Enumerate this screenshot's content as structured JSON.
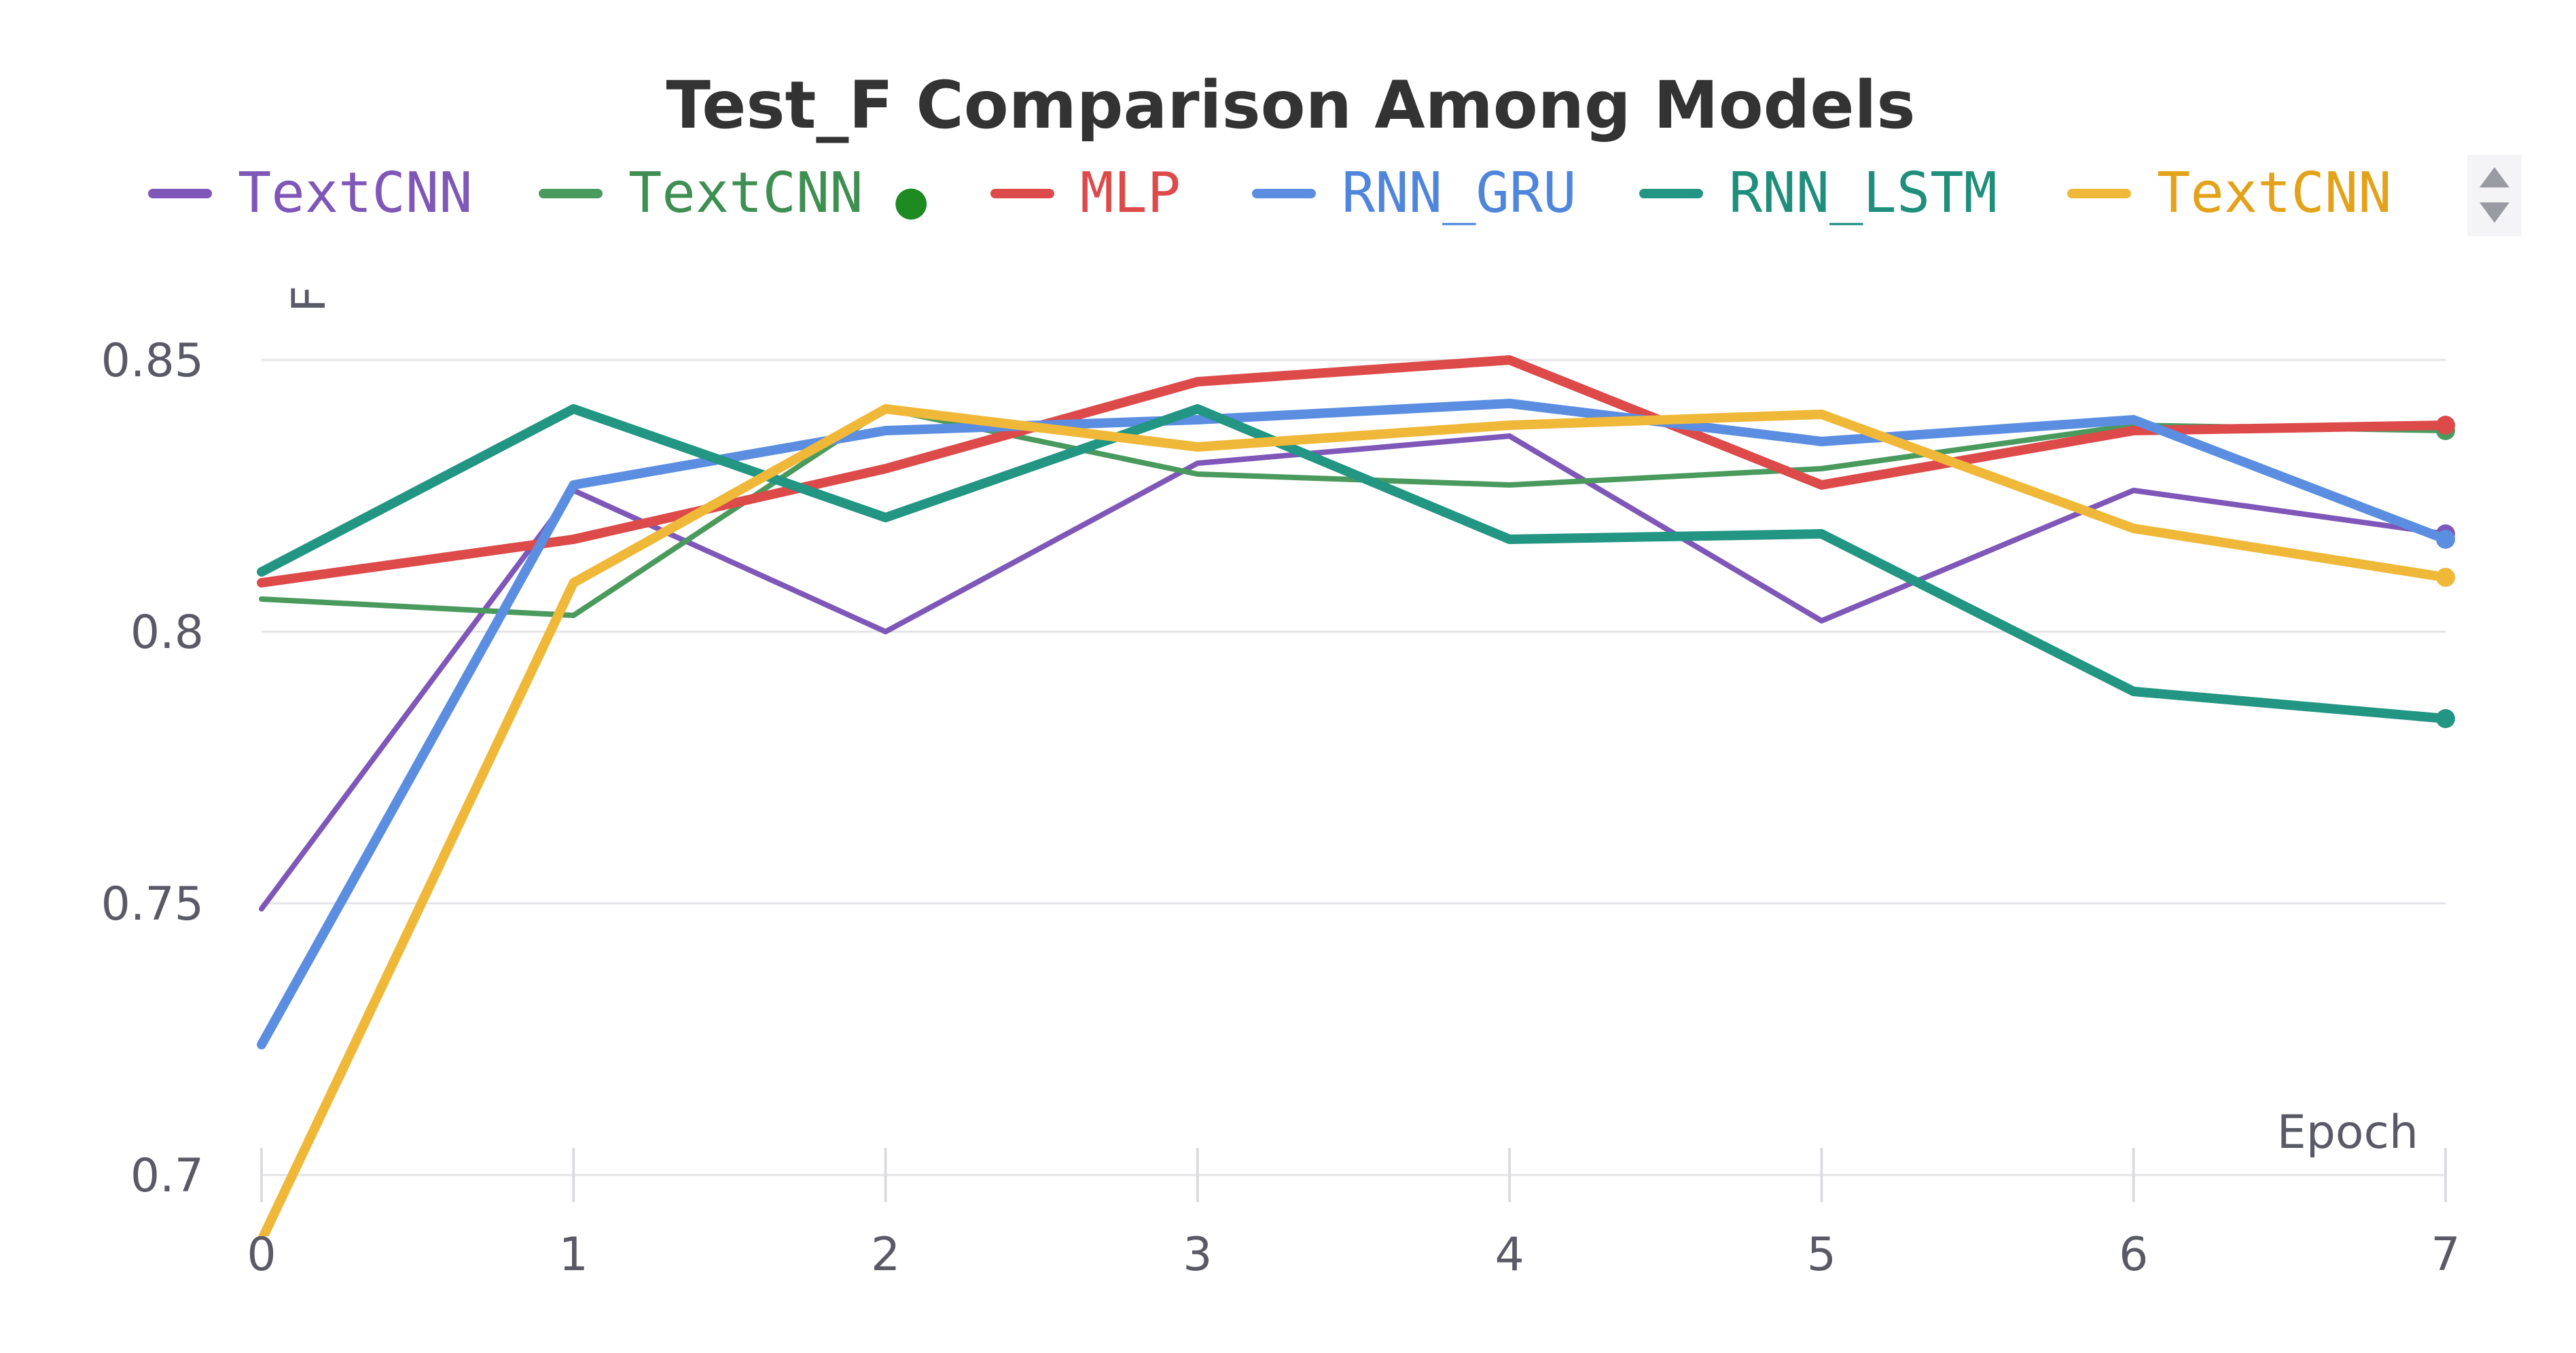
{
  "chart_data": {
    "type": "line",
    "title": "Test_F Comparison Among Models",
    "xlabel": "Epoch",
    "ylabel": "F",
    "x": [
      0,
      1,
      2,
      3,
      4,
      5,
      6,
      7
    ],
    "xlim": [
      0,
      7
    ],
    "ylim": [
      0.7,
      0.85
    ],
    "yticks": [
      0.7,
      0.75,
      0.8,
      0.85
    ],
    "ytick_labels": [
      "0.7",
      "0.75",
      "0.8",
      "0.85"
    ],
    "xticks": [
      0,
      1,
      2,
      3,
      4,
      5,
      6,
      7
    ],
    "xtick_labels": [
      "0",
      "1",
      "2",
      "3",
      "4",
      "5",
      "6",
      "7"
    ],
    "grid": true,
    "legend_position": "top",
    "series": [
      {
        "name": "TextCNN",
        "color": "#7e57b8",
        "label_color": "#7e57b8",
        "thick": false,
        "marker_end": true,
        "values": [
          0.749,
          0.826,
          0.8,
          0.831,
          0.836,
          0.802,
          0.826,
          0.818
        ]
      },
      {
        "name": "TextCNN",
        "legend_suffix": "●",
        "color": "#4a9a5e",
        "label_color": "#3f8f52",
        "thick": false,
        "marker_end": true,
        "values": [
          0.806,
          0.803,
          0.841,
          0.829,
          0.827,
          0.83,
          0.838,
          0.837
        ]
      },
      {
        "name": "MLP",
        "color": "#dd4a4a",
        "label_color": "#dd4a4a",
        "thick": true,
        "marker_end": true,
        "values": [
          0.809,
          0.817,
          0.83,
          0.846,
          0.85,
          0.827,
          0.837,
          0.838
        ]
      },
      {
        "name": "RNN_GRU",
        "color": "#5b8ee0",
        "label_color": "#4f86dc",
        "thick": true,
        "marker_end": true,
        "values": [
          0.724,
          0.827,
          0.837,
          0.839,
          0.842,
          0.835,
          0.839,
          0.817
        ]
      },
      {
        "name": "RNN_LSTM",
        "color": "#229583",
        "label_color": "#1f8f7c",
        "thick": true,
        "marker_end": true,
        "values": [
          0.811,
          0.841,
          0.821,
          0.841,
          0.817,
          0.818,
          0.789,
          0.784
        ]
      },
      {
        "name": "TextCNN",
        "color": "#f0b838",
        "label_color": "#e3a21a",
        "thick": true,
        "marker_end": true,
        "values": [
          0.688,
          0.809,
          0.841,
          0.834,
          0.838,
          0.84,
          0.819,
          0.81
        ]
      }
    ]
  },
  "legend": {
    "scroll_up_icon": "triangle-up-icon",
    "scroll_down_icon": "triangle-down-icon"
  }
}
